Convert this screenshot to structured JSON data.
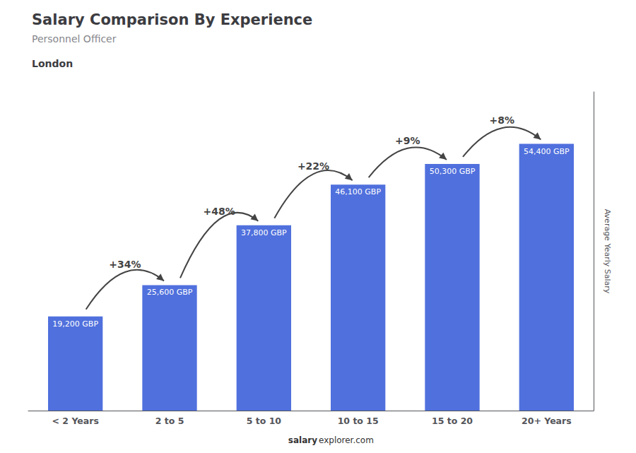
{
  "chart_data": {
    "type": "bar",
    "title": "Salary Comparison By Experience",
    "subtitle": [
      "Personnel Officer",
      "London"
    ],
    "ylabel": "Average Yearly Salary",
    "categories": [
      "< 2 Years",
      "2 to 5",
      "5 to 10",
      "10 to 15",
      "15 to 20",
      "20+ Years"
    ],
    "values": [
      19200,
      25600,
      37800,
      46100,
      50300,
      54400
    ],
    "value_labels": [
      "19,200 GBP",
      "25,600 GBP",
      "37,800 GBP",
      "46,100 GBP",
      "50,300 GBP",
      "54,400 GBP"
    ],
    "data_labels": true,
    "ylim": [
      0,
      65000
    ],
    "grid": false,
    "tick_labels": "x",
    "annotations": [
      {
        "text": "+34%",
        "from": "< 2 Years",
        "to": "2 to 5"
      },
      {
        "text": "+48%",
        "from": "2 to 5",
        "to": "5 to 10"
      },
      {
        "text": "+22%",
        "from": "5 to 10",
        "to": "10 to 15"
      },
      {
        "text": "+9%",
        "from": "10 to 15",
        "to": "15 to 20"
      },
      {
        "text": "+8%",
        "from": "15 to 20",
        "to": "20+ Years"
      }
    ],
    "footer": [
      "salary",
      "explorer.com"
    ]
  }
}
